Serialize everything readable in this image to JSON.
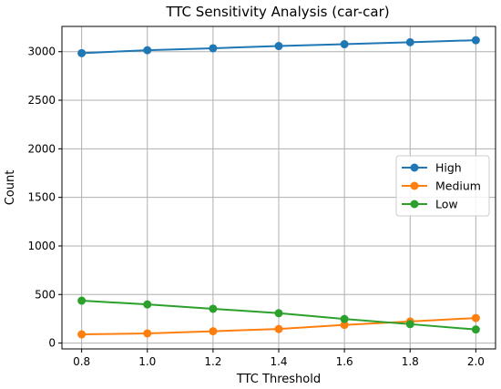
{
  "chart_data": {
    "type": "line",
    "title": "TTC Sensitivity Analysis (car-car)",
    "xlabel": "TTC Threshold",
    "ylabel": "Count",
    "x": [
      0.8,
      1.0,
      1.2,
      1.4,
      1.6,
      1.8,
      2.0
    ],
    "xticks": [
      "0.8",
      "1.0",
      "1.2",
      "1.4",
      "1.6",
      "1.8",
      "2.0"
    ],
    "yticks": [
      "0",
      "500",
      "1000",
      "1500",
      "2000",
      "2500",
      "3000"
    ],
    "xlim": [
      0.74,
      2.06
    ],
    "ylim": [
      -60,
      3260
    ],
    "grid": true,
    "legend_position": "center-right",
    "series": [
      {
        "name": "High",
        "color": "#1f77b4",
        "values": [
          2985,
          3015,
          3035,
          3058,
          3077,
          3097,
          3118
        ]
      },
      {
        "name": "Medium",
        "color": "#ff7f0e",
        "values": [
          90,
          100,
          122,
          145,
          187,
          222,
          258
        ]
      },
      {
        "name": "Low",
        "color": "#2ca02c",
        "values": [
          437,
          398,
          353,
          308,
          248,
          195,
          140
        ]
      }
    ]
  }
}
